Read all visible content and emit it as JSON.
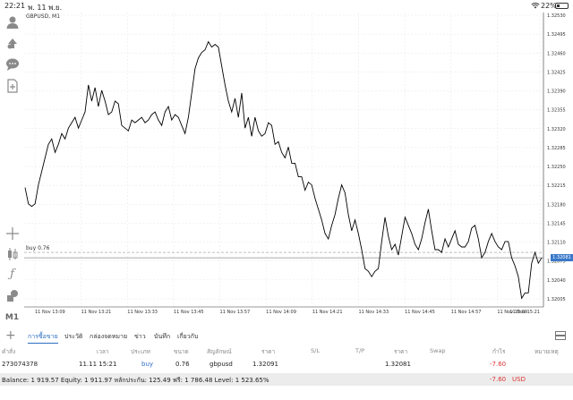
{
  "status_bar": {
    "time": "22:21",
    "date": "พ. 11 พ.ย.",
    "battery": "22%"
  },
  "left_toolbar": {
    "icons": [
      "user-icon",
      "trade-arrows-icon",
      "chat-icon",
      "document-icon",
      "crosshair-icon",
      "indicators-icon",
      "function-icon",
      "objects-icon"
    ],
    "timeframe": "M1"
  },
  "chart": {
    "symbol": "GBPUSD, M1",
    "buy_label": "buy 0.76",
    "current_price": "1.32081",
    "line_color": "#000000",
    "current_price_color": "#3a78c9"
  },
  "chart_data": {
    "type": "line",
    "title": "GBPUSD, M1",
    "ylim": [
      1.3199,
      1.32535
    ],
    "y_ticks": [
      "1.32530",
      "1.32495",
      "1.32460",
      "1.32425",
      "1.32390",
      "1.32355",
      "1.32320",
      "1.32285",
      "1.32250",
      "1.32215",
      "1.32180",
      "1.32145",
      "1.32110",
      "1.32075",
      "1.32040",
      "1.32005"
    ],
    "x_ticks": [
      "11 Nov 13:09",
      "11 Nov 13:21",
      "11 Nov 13:33",
      "11 Nov 13:45",
      "11 Nov 13:57",
      "11 Nov 14:09",
      "11 Nov 14:21",
      "11 Nov 14:33",
      "11 Nov 14:45",
      "11 Nov 14:57",
      "11 Nov 15:09",
      "11 Nov 15:21"
    ],
    "buy_level": 1.32091,
    "current_level": 1.32081,
    "series": [
      {
        "values": [
          1.32211,
          1.32181,
          1.32176,
          1.32181,
          1.32216,
          1.32241,
          1.32266,
          1.32291,
          1.32301,
          1.32276,
          1.32291,
          1.32311,
          1.32301,
          1.32321,
          1.32331,
          1.32341,
          1.32321,
          1.32336,
          1.32351,
          1.32401,
          1.32371,
          1.32396,
          1.32361,
          1.32391,
          1.32371,
          1.32346,
          1.32351,
          1.32371,
          1.32366,
          1.32326,
          1.32321,
          1.32316,
          1.32336,
          1.32331,
          1.32336,
          1.32341,
          1.32331,
          1.32336,
          1.32346,
          1.32351,
          1.32336,
          1.32326,
          1.32351,
          1.32361,
          1.32336,
          1.32346,
          1.32341,
          1.32326,
          1.32311,
          1.32341,
          1.32386,
          1.32431,
          1.32451,
          1.32461,
          1.32466,
          1.32481,
          1.32471,
          1.32476,
          1.32471,
          1.32436,
          1.32401,
          1.32371,
          1.32351,
          1.32376,
          1.32341,
          1.32386,
          1.32321,
          1.32341,
          1.32306,
          1.32341,
          1.32316,
          1.32306,
          1.32311,
          1.32331,
          1.32326,
          1.32291,
          1.32296,
          1.32276,
          1.32266,
          1.32286,
          1.32256,
          1.32256,
          1.32231,
          1.32231,
          1.32206,
          1.32221,
          1.32216,
          1.32191,
          1.32171,
          1.32151,
          1.32126,
          1.32116,
          1.32141,
          1.32161,
          1.32191,
          1.32216,
          1.32201,
          1.32161,
          1.32131,
          1.32151,
          1.32126,
          1.32096,
          1.32061,
          1.32056,
          1.32046,
          1.32056,
          1.32061,
          1.32111,
          1.32156,
          1.32121,
          1.32096,
          1.32106,
          1.32086,
          1.32121,
          1.32156,
          1.32141,
          1.32126,
          1.32106,
          1.32096,
          1.32116,
          1.32146,
          1.32171,
          1.32131,
          1.32096,
          1.32096,
          1.32091,
          1.32116,
          1.32101,
          1.32116,
          1.32131,
          1.32106,
          1.32101,
          1.32101,
          1.32111,
          1.32136,
          1.32141,
          1.32116,
          1.32081,
          1.32091,
          1.32111,
          1.32126,
          1.32111,
          1.32101,
          1.32096,
          1.32111,
          1.32111,
          1.32081,
          1.32066,
          1.32046,
          1.32006,
          1.32016,
          1.32016,
          1.32071,
          1.32091,
          1.32071,
          1.32081
        ]
      }
    ]
  },
  "bottom_panel": {
    "tabs": [
      "การซื้อขาย",
      "ประวัติ",
      "กล่องจดหมาย",
      "ข่าว",
      "บันทึก",
      "เกี่ยวกับ"
    ],
    "columns": {
      "ticket": "คำสั่ง",
      "time": "เวลา",
      "type": "ประเภท",
      "volume": "ขนาด",
      "symbol": "สัญลักษณ์",
      "price": "ราคา",
      "sl": "S/L",
      "tp": "T/P",
      "current_price": "ราคา",
      "swap": "Swap",
      "profit": "กำไร",
      "comment": "หมายเหตุ"
    },
    "order": {
      "ticket": "273074378",
      "time": "11.11 15:21",
      "type": "buy",
      "volume": "0.76",
      "symbol": "gbpusd",
      "price": "1.32091",
      "current_price": "1.32081",
      "profit": "-7.60"
    },
    "balance_text": "Balance: 1 919.57 Equity: 1 911.97 หลักประกัน: 125.49 ฟรี: 1 786.48 Level: 1 523.65%",
    "total_profit": "-7.60",
    "currency": "USD"
  }
}
